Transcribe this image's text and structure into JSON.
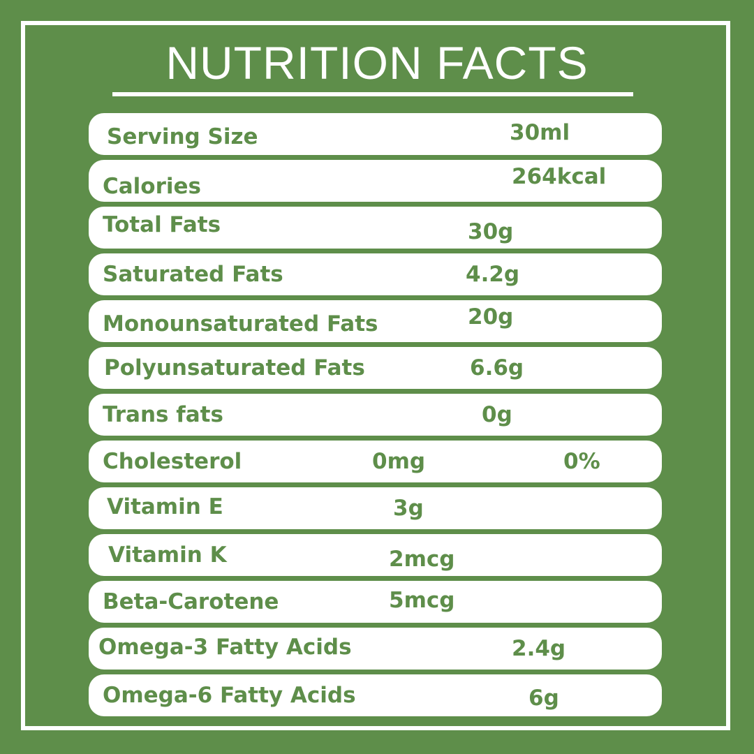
{
  "title": "NUTRITION FACTS",
  "colors": {
    "background": "#5e8e4a",
    "row": "#ffffff",
    "text": "#5e8e4a"
  },
  "rows": [
    {
      "label": "Serving Size",
      "value": "30ml"
    },
    {
      "label": "Calories",
      "value": "264kcal"
    },
    {
      "label": "Total Fats",
      "value": "30g"
    },
    {
      "label": "Saturated Fats",
      "value": "4.2g"
    },
    {
      "label": "Monounsaturated Fats",
      "value": "20g"
    },
    {
      "label": "Polyunsaturated Fats",
      "value": "6.6g"
    },
    {
      "label": "Trans fats",
      "value": "0g"
    },
    {
      "label": "Cholesterol",
      "value": "0mg",
      "percent": "0%"
    },
    {
      "label": "Vitamin E",
      "value": "3g"
    },
    {
      "label": "Vitamin K",
      "value": "2mcg"
    },
    {
      "label": "Beta-Carotene",
      "value": "5mcg"
    },
    {
      "label": "Omega-3 Fatty Acids",
      "value": "2.4g"
    },
    {
      "label": "Omega-6 Fatty Acids",
      "value": "6g"
    }
  ]
}
